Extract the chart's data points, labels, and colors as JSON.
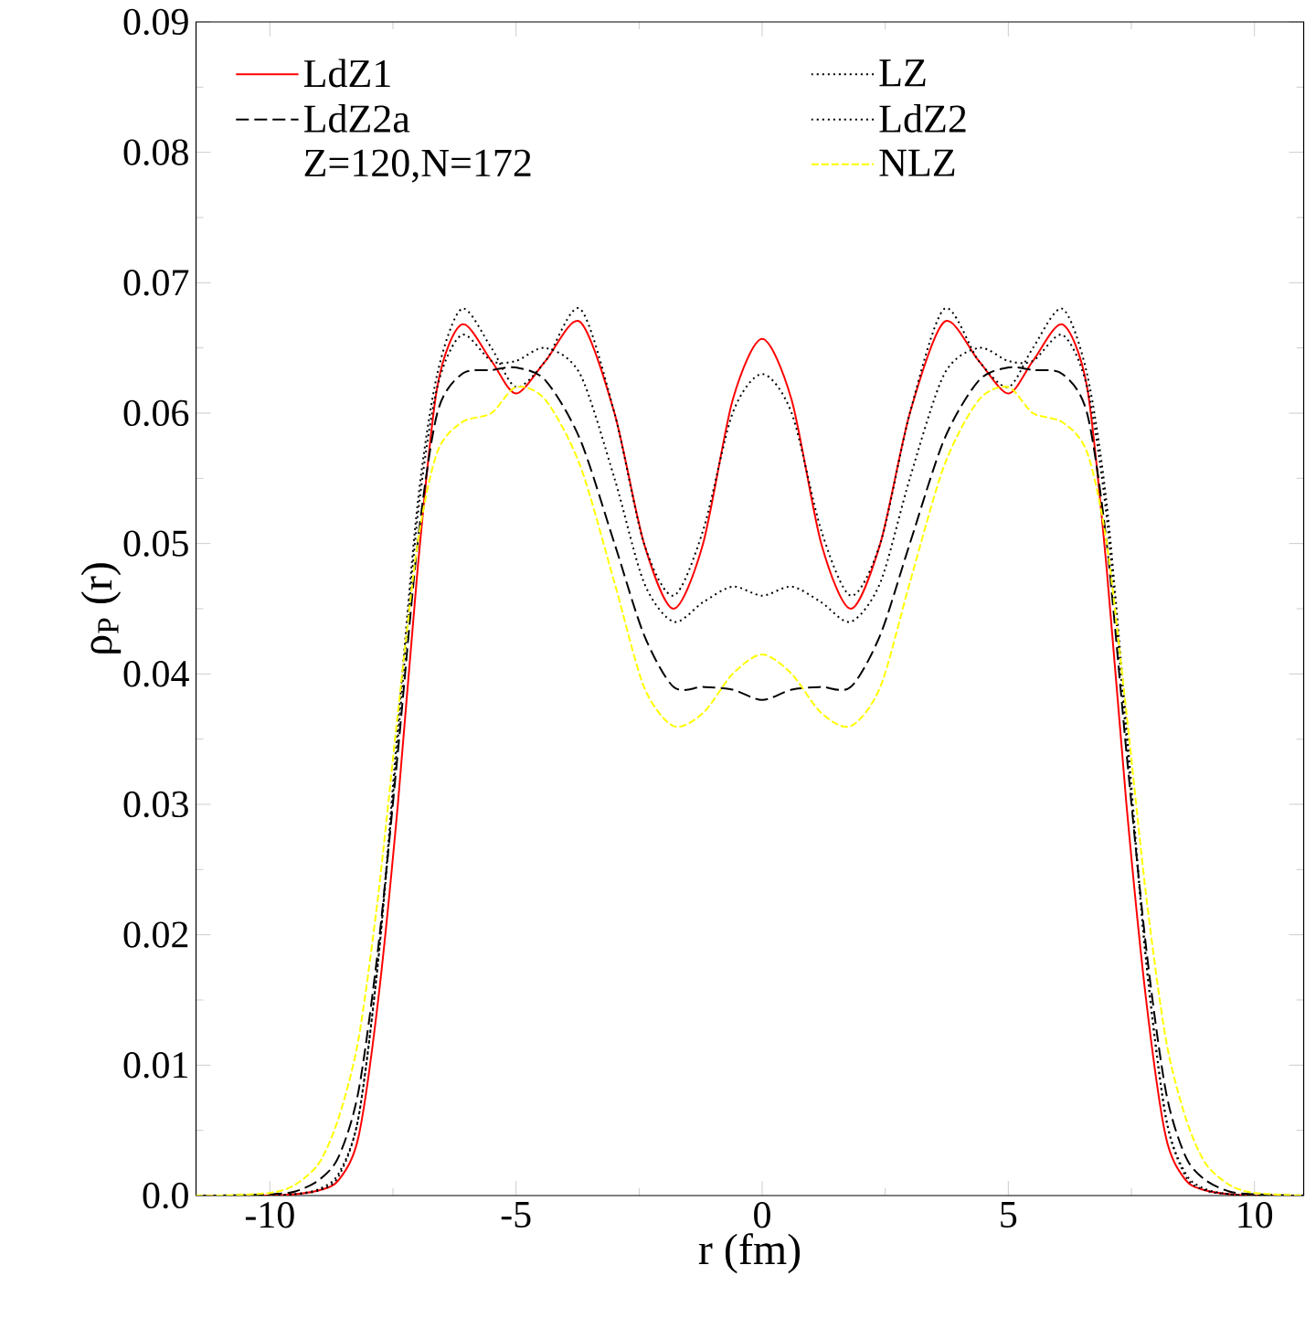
{
  "chart_data": {
    "type": "line",
    "xlabel": "r (fm)",
    "ylabel": "ρ$_{P}$ (r)",
    "annotations": [
      "Z=120,N=172"
    ],
    "x": [
      -11.5,
      -11,
      -10,
      -9.5,
      -9,
      -8.6,
      -8.2,
      -7.8,
      -7.4,
      -7,
      -6.6,
      -6.1,
      -5.5,
      -5,
      -4.4,
      -3.7,
      -3,
      -2.4,
      -1.8,
      -1.2,
      -0.6,
      0,
      0.6,
      1.2,
      1.8,
      2.4,
      3,
      3.7,
      4.4,
      5,
      5.5,
      6.1,
      6.6,
      7,
      7.4,
      7.8,
      8.2,
      8.6,
      9,
      9.5,
      10,
      11
    ],
    "series": [
      {
        "name": "LdZ1",
        "color": "#ff0000",
        "line_style": "solid",
        "values": [
          0,
          0,
          0,
          0.0001,
          0.0004,
          0.0012,
          0.0045,
          0.015,
          0.03,
          0.048,
          0.062,
          0.0668,
          0.064,
          0.0615,
          0.064,
          0.067,
          0.06,
          0.05,
          0.045,
          0.05,
          0.061,
          0.0657,
          0.061,
          0.05,
          0.045,
          0.05,
          0.06,
          0.067,
          0.064,
          0.0615,
          0.064,
          0.0668,
          0.062,
          0.048,
          0.03,
          0.015,
          0.0045,
          0.0012,
          0.0004,
          0.0001,
          0,
          0
        ]
      },
      {
        "name": "LZ",
        "color": "#000000",
        "line_style": "dotted",
        "values": [
          0,
          0,
          0,
          0.0001,
          0.0004,
          0.0015,
          0.006,
          0.018,
          0.036,
          0.053,
          0.063,
          0.068,
          0.065,
          0.062,
          0.064,
          0.068,
          0.06,
          0.05,
          0.046,
          0.051,
          0.06,
          0.063,
          0.06,
          0.051,
          0.046,
          0.05,
          0.06,
          0.068,
          0.064,
          0.062,
          0.065,
          0.068,
          0.063,
          0.053,
          0.036,
          0.018,
          0.006,
          0.0015,
          0.0004,
          0.0001,
          0,
          0
        ]
      },
      {
        "name": "LdZ2a",
        "color": "#000000",
        "line_style": "dashed",
        "values": [
          0,
          0,
          0.0001,
          0.0003,
          0.0012,
          0.003,
          0.008,
          0.019,
          0.034,
          0.05,
          0.06,
          0.063,
          0.0633,
          0.0635,
          0.0625,
          0.058,
          0.05,
          0.043,
          0.039,
          0.039,
          0.0388,
          0.038,
          0.0388,
          0.039,
          0.039,
          0.043,
          0.05,
          0.058,
          0.0625,
          0.0635,
          0.0633,
          0.063,
          0.06,
          0.05,
          0.034,
          0.019,
          0.008,
          0.003,
          0.0012,
          0.0003,
          0.0001,
          0
        ]
      },
      {
        "name": "LdZ2",
        "color": "#000000",
        "line_style": "dotted",
        "values": [
          0,
          0,
          0,
          0.0001,
          0.0005,
          0.0017,
          0.006,
          0.018,
          0.035,
          0.052,
          0.062,
          0.066,
          0.064,
          0.064,
          0.065,
          0.063,
          0.055,
          0.047,
          0.044,
          0.0455,
          0.0467,
          0.046,
          0.0467,
          0.0455,
          0.044,
          0.047,
          0.055,
          0.063,
          0.065,
          0.064,
          0.064,
          0.066,
          0.062,
          0.052,
          0.035,
          0.018,
          0.006,
          0.0017,
          0.0005,
          0.0001,
          0,
          0
        ]
      },
      {
        "name": "NLZ",
        "color": "#ffff00",
        "line_style": "dashed",
        "values": [
          0,
          0,
          0.0002,
          0.0008,
          0.0025,
          0.006,
          0.012,
          0.023,
          0.037,
          0.05,
          0.057,
          0.0593,
          0.06,
          0.062,
          0.061,
          0.056,
          0.047,
          0.039,
          0.036,
          0.037,
          0.04,
          0.0415,
          0.04,
          0.037,
          0.036,
          0.039,
          0.047,
          0.056,
          0.061,
          0.062,
          0.06,
          0.0593,
          0.057,
          0.05,
          0.037,
          0.023,
          0.012,
          0.006,
          0.0025,
          0.0008,
          0.0002,
          0
        ]
      }
    ],
    "xlim": [
      -11.5,
      11
    ],
    "ylim": [
      0,
      0.09
    ],
    "xticks": [
      -10,
      -5,
      0,
      5,
      10
    ],
    "yticks": [
      {
        "value": 0,
        "label": "0.0"
      },
      0.01,
      0.02,
      0.03,
      0.04,
      0.05,
      0.06,
      0.07,
      0.08,
      0.09
    ],
    "grid": false,
    "legend": "top",
    "marker": "none"
  }
}
